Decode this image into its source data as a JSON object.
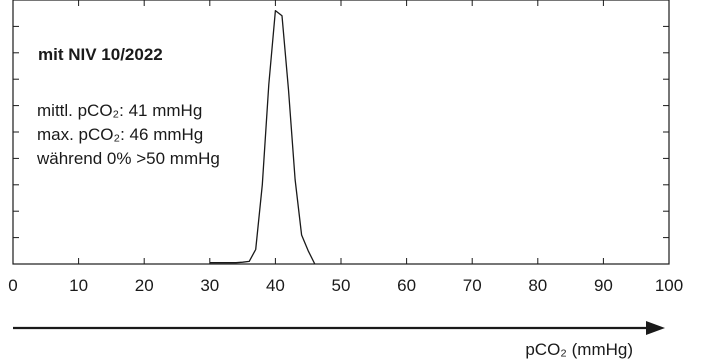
{
  "chart_data": {
    "type": "line",
    "xlabel": "pCO₂ (mmHg)",
    "xlim": [
      0,
      100
    ],
    "x_ticks": [
      "0",
      "10",
      "20",
      "30",
      "40",
      "50",
      "60",
      "70",
      "80",
      "90",
      "100"
    ],
    "x": [
      30,
      31,
      32,
      33,
      34,
      35,
      36,
      37,
      38,
      39,
      40,
      41,
      42,
      43,
      44,
      45,
      46
    ],
    "y": [
      0.5,
      0.5,
      0.5,
      0.5,
      0.5,
      0.7,
      1.0,
      5.5,
      30.0,
      68.0,
      96.0,
      94.0,
      66.0,
      32.0,
      11.0,
      5.0,
      0.0
    ],
    "ylim": [
      0,
      100
    ],
    "y_ticks_labeled": false,
    "grid": false,
    "annotations": {
      "title": "mit NIV 10/2022",
      "line1": "mittl. pCO₂: 41 mmHg",
      "line2": "max. pCO₂: 46 mmHg",
      "line3": "während 0% >50 mmHg"
    }
  }
}
